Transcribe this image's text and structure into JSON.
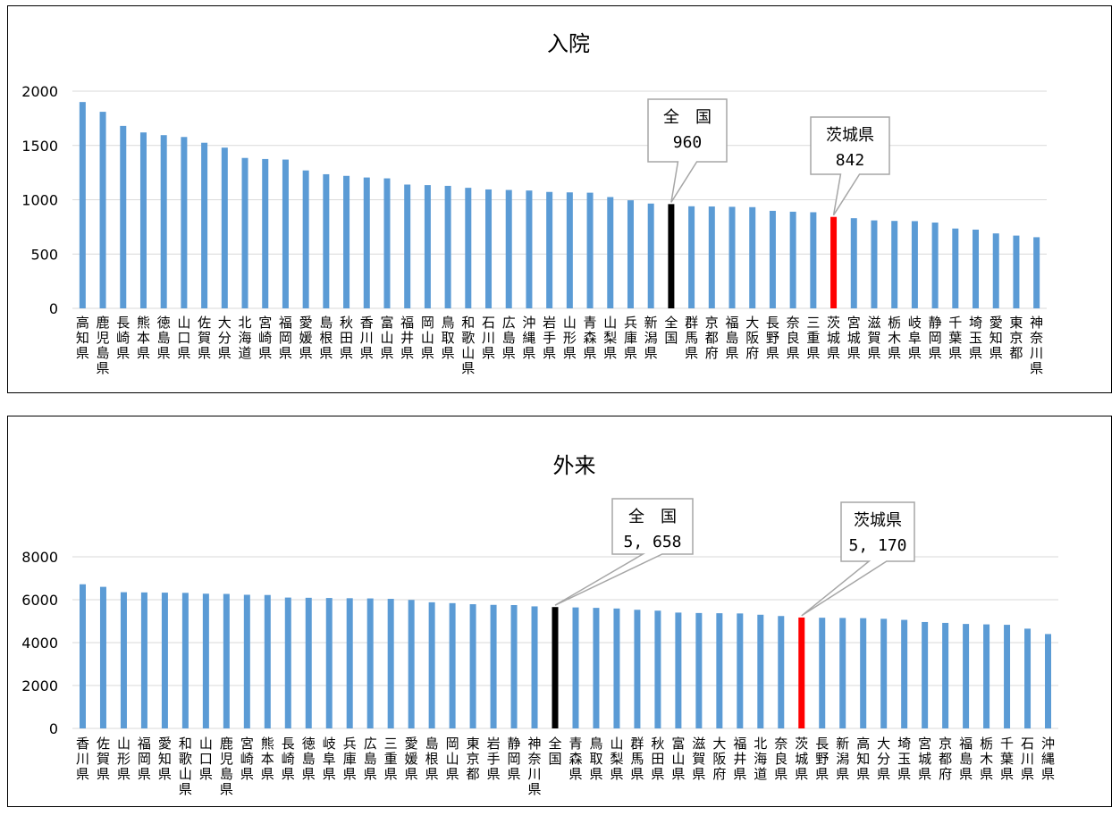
{
  "colors": {
    "default_bar": "#5B9BD5",
    "national_bar": "#000000",
    "ibaraki_bar": "#FF0000",
    "grid": "#D9D9D9"
  },
  "chart_data": [
    {
      "type": "bar",
      "title": "入院",
      "ylim": [
        0,
        2000
      ],
      "yticks": [
        0,
        500,
        1000,
        1500,
        2000
      ],
      "grid": true,
      "categories": [
        "高知県",
        "鹿児島県",
        "長崎県",
        "熊本県",
        "徳島県",
        "山口県",
        "佐賀県",
        "大分県",
        "北海道",
        "宮崎県",
        "福岡県",
        "愛媛県",
        "島根県",
        "秋田県",
        "香川県",
        "富山県",
        "福井県",
        "岡山県",
        "鳥取県",
        "和歌山県",
        "石川県",
        "広島県",
        "沖縄県",
        "岩手県",
        "山形県",
        "青森県",
        "山梨県",
        "兵庫県",
        "新潟県",
        "全国",
        "群馬県",
        "京都府",
        "福島県",
        "大阪府",
        "長野県",
        "奈良県",
        "三重県",
        "茨城県",
        "宮城県",
        "滋賀県",
        "栃木県",
        "岐阜県",
        "静岡県",
        "千葉県",
        "埼玉県",
        "愛知県",
        "東京都",
        "神奈川県"
      ],
      "values": [
        1900,
        1810,
        1680,
        1620,
        1595,
        1578,
        1525,
        1480,
        1385,
        1375,
        1370,
        1270,
        1235,
        1220,
        1205,
        1197,
        1140,
        1135,
        1128,
        1110,
        1095,
        1090,
        1085,
        1072,
        1068,
        1065,
        1025,
        995,
        965,
        960,
        940,
        938,
        935,
        932,
        898,
        890,
        885,
        842,
        830,
        810,
        805,
        803,
        790,
        735,
        725,
        690,
        670,
        655
      ],
      "highlights": [
        {
          "category": "全国",
          "label_lines": [
            "全　国",
            "960"
          ],
          "color_key": "national_bar"
        },
        {
          "category": "茨城県",
          "label_lines": [
            "茨城県",
            "842"
          ],
          "color_key": "ibaraki_bar"
        }
      ]
    },
    {
      "type": "bar",
      "title": "外来",
      "ylim": [
        0,
        10000
      ],
      "yticks": [
        0,
        2000,
        4000,
        6000,
        8000
      ],
      "grid": true,
      "categories": [
        "香川県",
        "佐賀県",
        "山形県",
        "福岡県",
        "愛知県",
        "和歌山県",
        "山口県",
        "鹿児島県",
        "宮崎県",
        "熊本県",
        "長崎県",
        "徳島県",
        "岐阜県",
        "兵庫県",
        "広島県",
        "三重県",
        "愛媛県",
        "島根県",
        "岡山県",
        "東京都",
        "岩手県",
        "静岡県",
        "神奈川県",
        "全国",
        "青森県",
        "鳥取県",
        "山梨県",
        "群馬県",
        "秋田県",
        "富山県",
        "滋賀県",
        "大阪府",
        "福井県",
        "北海道",
        "奈良県",
        "茨城県",
        "長野県",
        "新潟県",
        "高知県",
        "大分県",
        "埼玉県",
        "宮城県",
        "京都府",
        "福島県",
        "栃木県",
        "千葉県",
        "石川県",
        "沖縄県"
      ],
      "values": [
        6720,
        6600,
        6350,
        6340,
        6330,
        6320,
        6280,
        6270,
        6230,
        6220,
        6100,
        6090,
        6080,
        6070,
        6060,
        6040,
        5990,
        5880,
        5840,
        5790,
        5760,
        5750,
        5690,
        5658,
        5640,
        5620,
        5590,
        5530,
        5490,
        5400,
        5380,
        5370,
        5360,
        5300,
        5240,
        5170,
        5160,
        5150,
        5140,
        5110,
        5060,
        4960,
        4920,
        4870,
        4850,
        4830,
        4650,
        4400
      ],
      "highlights": [
        {
          "category": "全国",
          "label_lines": [
            "全　国",
            "5, 658"
          ],
          "color_key": "national_bar"
        },
        {
          "category": "茨城県",
          "label_lines": [
            "茨城県",
            "5, 170"
          ],
          "color_key": "ibaraki_bar"
        }
      ]
    }
  ]
}
